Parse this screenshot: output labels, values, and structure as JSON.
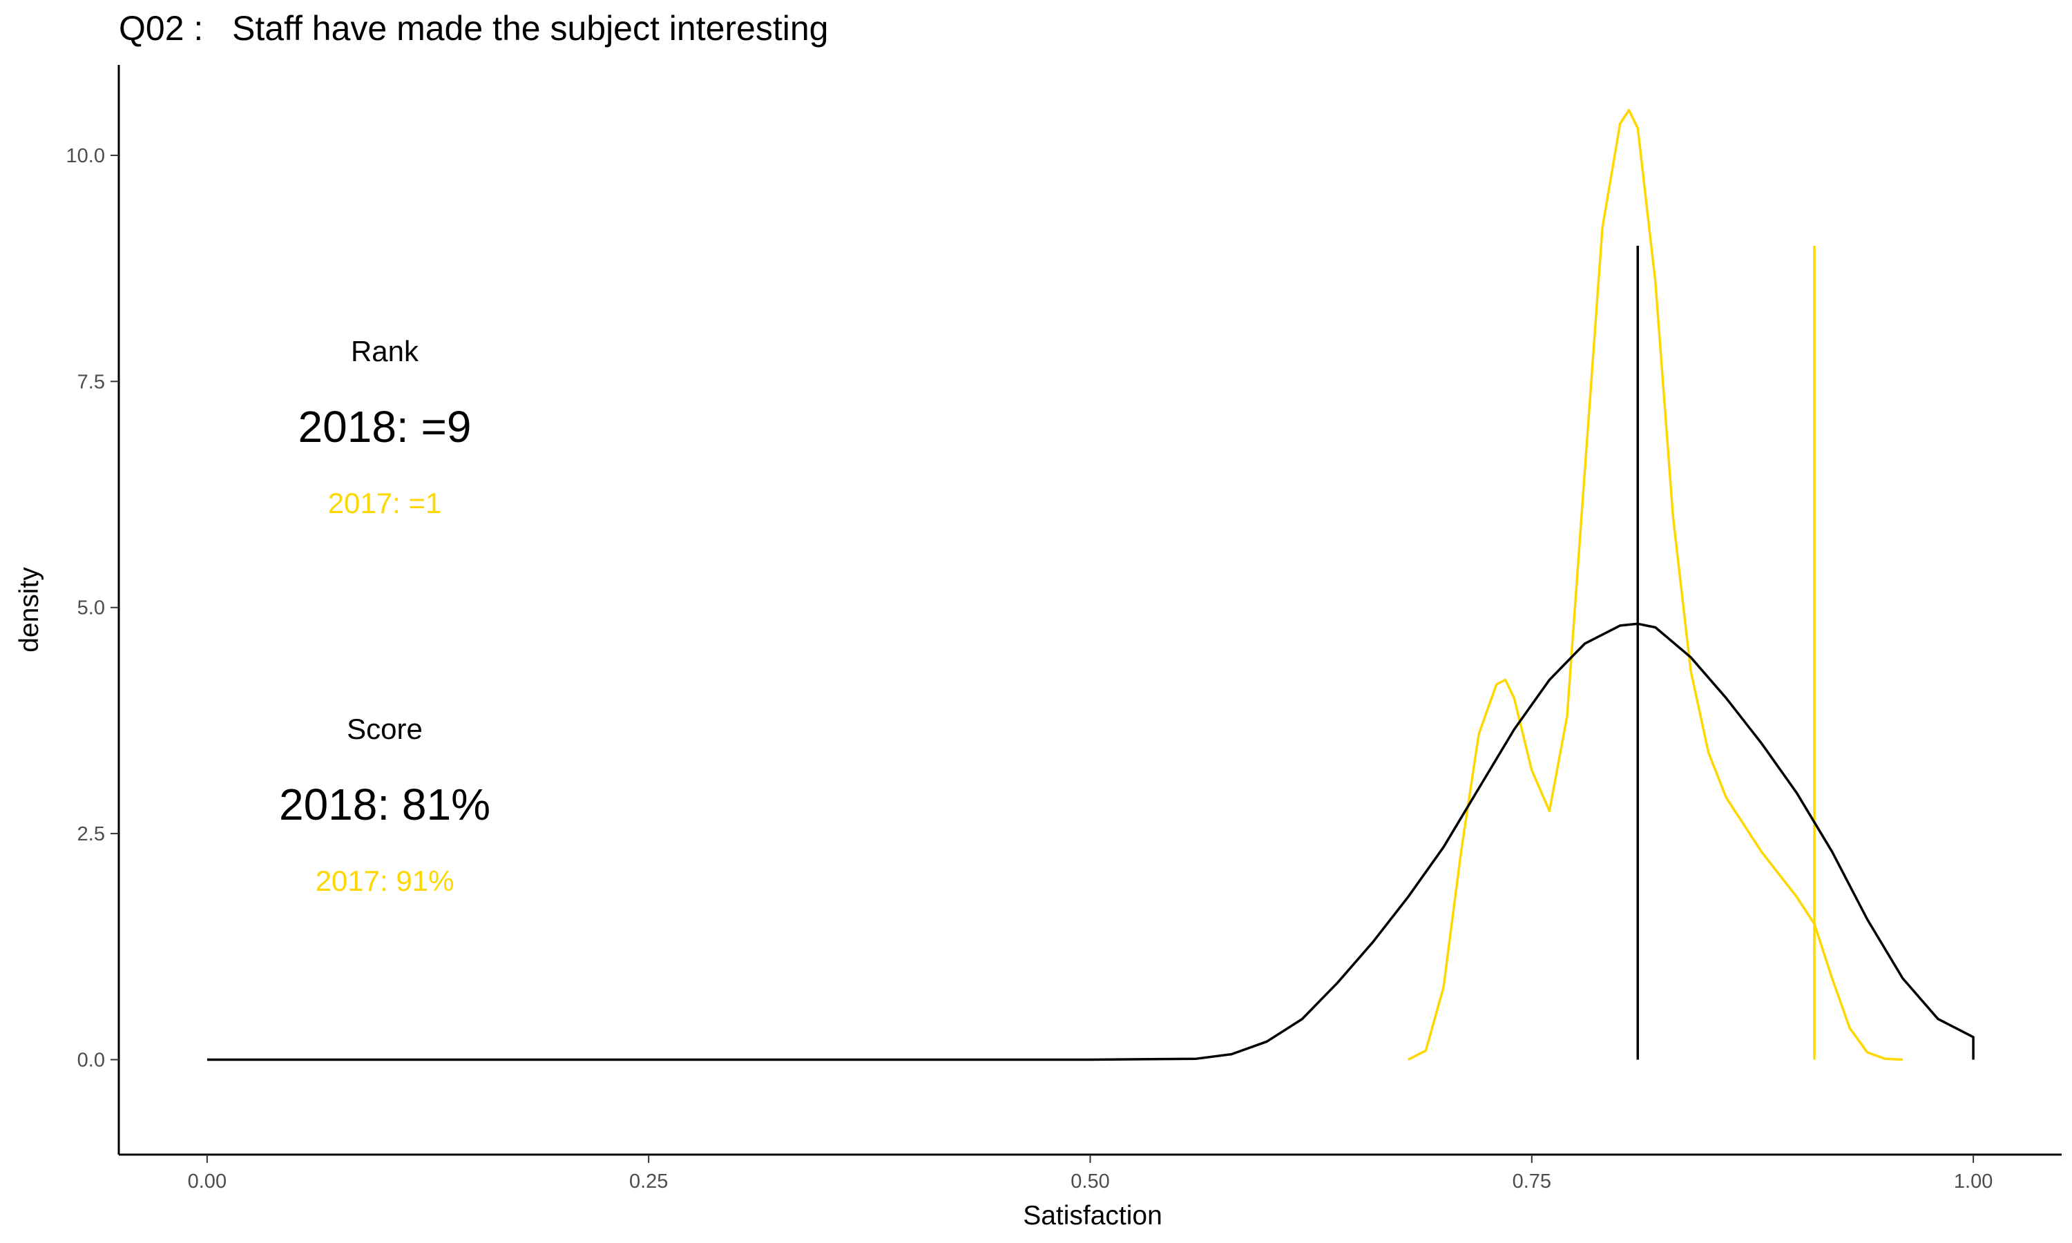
{
  "chart_data": {
    "type": "line",
    "title": "Q02 :   Staff have made the subject interesting",
    "xlabel": "Satisfaction",
    "ylabel": "density",
    "xlim": [
      -0.05,
      1.05
    ],
    "ylim": [
      -1.05,
      11.0
    ],
    "x_ticks": [
      0,
      0.25,
      0.5,
      0.75,
      1.0
    ],
    "x_tick_labels": [
      "0.00",
      "0.25",
      "0.50",
      "0.75",
      "1.00"
    ],
    "y_ticks": [
      0,
      2.5,
      5,
      7.5,
      10
    ],
    "y_tick_labels": [
      "0.0",
      "2.5",
      "5.0",
      "7.5",
      "10.0"
    ],
    "grid": false,
    "series": [
      {
        "color": "#000000",
        "x": [
          0,
          0.5,
          0.56,
          0.58,
          0.6,
          0.62,
          0.64,
          0.66,
          0.68,
          0.7,
          0.72,
          0.74,
          0.76,
          0.78,
          0.8,
          0.81,
          0.82,
          0.84,
          0.86,
          0.88,
          0.9,
          0.92,
          0.94,
          0.96,
          0.98,
          1.0,
          1.0
        ],
        "y": [
          0,
          0,
          0.01,
          0.06,
          0.2,
          0.45,
          0.85,
          1.3,
          1.8,
          2.35,
          3.0,
          3.65,
          4.2,
          4.6,
          4.8,
          4.82,
          4.78,
          4.45,
          4.0,
          3.5,
          2.95,
          2.3,
          1.55,
          0.9,
          0.45,
          0.25,
          0
        ],
        "vline": {
          "x": 0.81,
          "y_top": 9.0
        }
      },
      {
        "color": "#FFD700",
        "x": [
          0.68,
          0.69,
          0.7,
          0.71,
          0.72,
          0.73,
          0.735,
          0.74,
          0.75,
          0.76,
          0.77,
          0.78,
          0.79,
          0.8,
          0.805,
          0.81,
          0.82,
          0.83,
          0.84,
          0.85,
          0.86,
          0.88,
          0.9,
          0.91,
          0.92,
          0.93,
          0.94,
          0.95,
          0.96
        ],
        "y": [
          0,
          0.1,
          0.8,
          2.3,
          3.6,
          4.15,
          4.2,
          4.0,
          3.2,
          2.75,
          3.8,
          6.5,
          9.2,
          10.35,
          10.5,
          10.3,
          8.6,
          6.0,
          4.3,
          3.4,
          2.9,
          2.3,
          1.8,
          1.5,
          0.9,
          0.35,
          0.08,
          0.01,
          0
        ],
        "vline": {
          "x": 0.91,
          "y_top": 9.0
        }
      }
    ],
    "annotations": {
      "rank_heading": "Rank",
      "rank_2018": "2018: =9",
      "rank_2017": "2017: =1",
      "score_heading": "Score",
      "score_2018": "2018: 81%",
      "score_2017": "2017: 91%"
    },
    "colors": {
      "current": "#000000",
      "previous": "#FFD700"
    }
  }
}
